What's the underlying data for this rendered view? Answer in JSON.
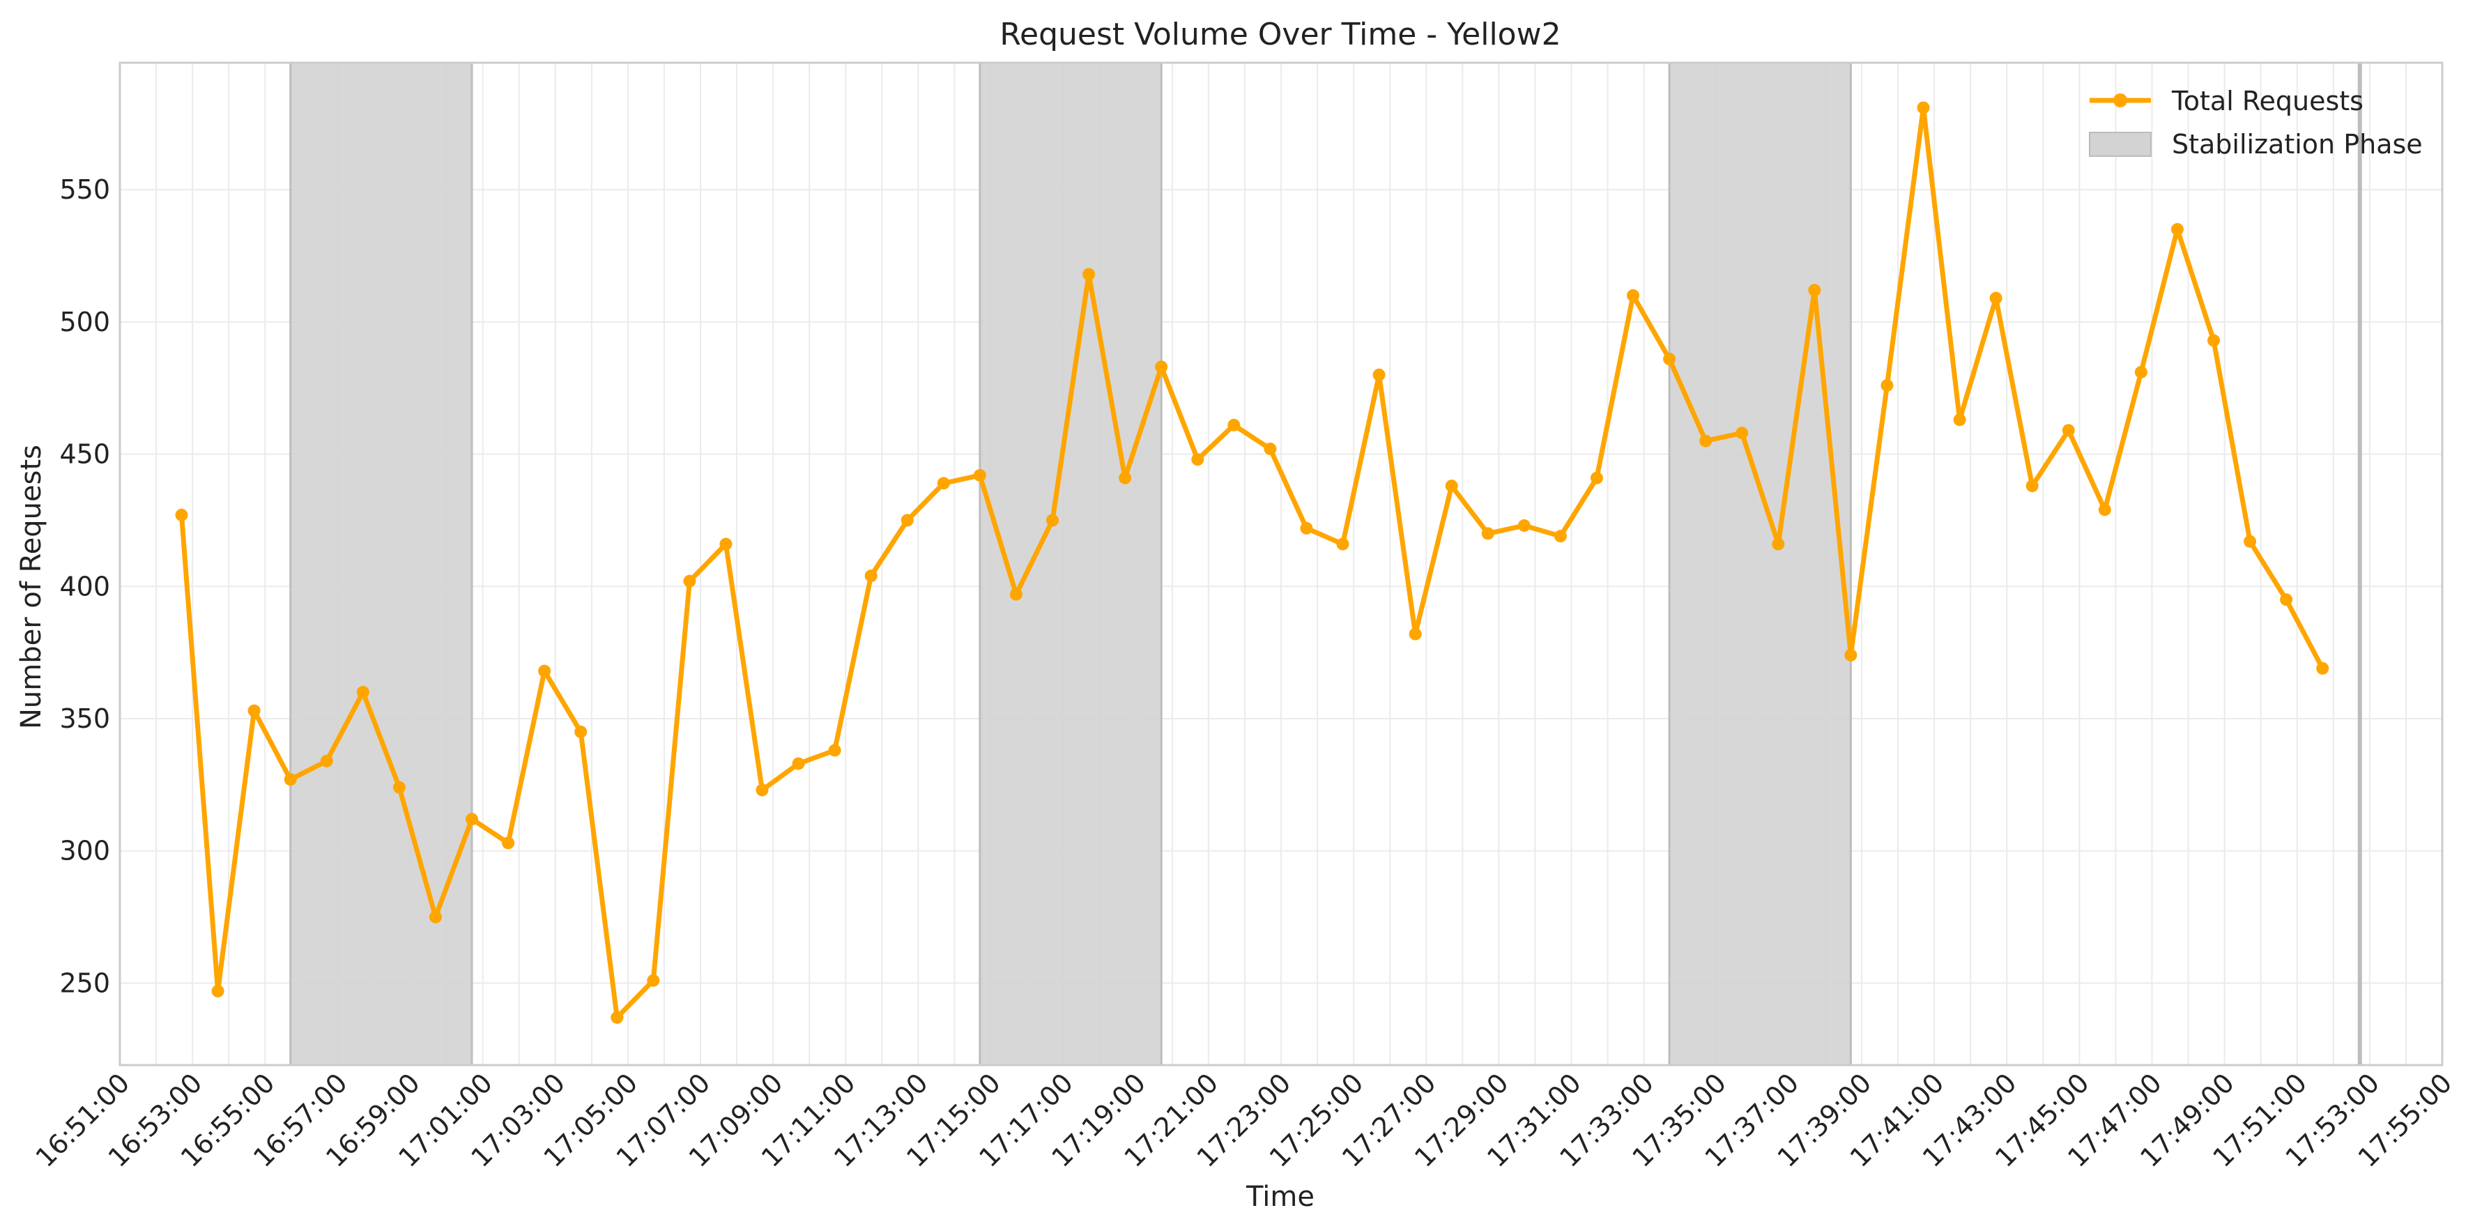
{
  "chart_data": {
    "type": "line",
    "title": "Request Volume Over Time - Yellow2",
    "xlabel": "Time",
    "ylabel": "Number of Requests",
    "x_range": [
      "16:51:00",
      "17:55:00"
    ],
    "ylim": [
      219,
      598
    ],
    "grid": true,
    "legend_position": "top-right",
    "x_ticks": [
      "16:51:00",
      "16:53:00",
      "16:55:00",
      "16:57:00",
      "16:59:00",
      "17:01:00",
      "17:03:00",
      "17:05:00",
      "17:07:00",
      "17:09:00",
      "17:11:00",
      "17:13:00",
      "17:15:00",
      "17:17:00",
      "17:19:00",
      "17:21:00",
      "17:23:00",
      "17:25:00",
      "17:27:00",
      "17:29:00",
      "17:31:00",
      "17:33:00",
      "17:35:00",
      "17:37:00",
      "17:39:00",
      "17:41:00",
      "17:43:00",
      "17:45:00",
      "17:47:00",
      "17:49:00",
      "17:51:00",
      "17:53:00",
      "17:55:00"
    ],
    "y_ticks": [
      250,
      300,
      350,
      400,
      450,
      500,
      550
    ],
    "series": [
      {
        "name": "Total Requests",
        "color": "#FFA500",
        "x": [
          "16:52:42",
          "16:53:42",
          "16:54:42",
          "16:55:42",
          "16:56:42",
          "16:57:42",
          "16:58:42",
          "16:59:42",
          "17:00:42",
          "17:01:42",
          "17:02:42",
          "17:03:42",
          "17:04:42",
          "17:05:42",
          "17:06:42",
          "17:07:42",
          "17:08:42",
          "17:09:42",
          "17:10:42",
          "17:11:42",
          "17:12:42",
          "17:13:42",
          "17:14:42",
          "17:15:42",
          "17:16:42",
          "17:17:42",
          "17:18:42",
          "17:19:42",
          "17:20:42",
          "17:21:42",
          "17:22:42",
          "17:23:42",
          "17:24:42",
          "17:25:42",
          "17:26:42",
          "17:27:42",
          "17:28:42",
          "17:29:42",
          "17:30:42",
          "17:31:42",
          "17:32:42",
          "17:33:42",
          "17:34:42",
          "17:35:42",
          "17:36:42",
          "17:37:42",
          "17:38:42",
          "17:39:42",
          "17:40:42",
          "17:41:42",
          "17:42:42",
          "17:43:42",
          "17:44:42",
          "17:45:42",
          "17:46:42",
          "17:47:42",
          "17:48:42",
          "17:49:42",
          "17:50:42",
          "17:51:42"
        ],
        "values": [
          427,
          247,
          353,
          327,
          334,
          360,
          324,
          275,
          312,
          303,
          368,
          345,
          237,
          251,
          402,
          416,
          323,
          333,
          338,
          404,
          425,
          439,
          442,
          397,
          425,
          518,
          441,
          483,
          448,
          461,
          452,
          422,
          416,
          480,
          382,
          438,
          420,
          423,
          419,
          441,
          510,
          486,
          455,
          458,
          416,
          512,
          374,
          476,
          581,
          463,
          509,
          438,
          459,
          429,
          481,
          535,
          493,
          417,
          395,
          369
        ]
      }
    ],
    "shaded_regions": {
      "name": "Stabilization Phase",
      "color": "#d3d3d3",
      "ranges": [
        [
          "16:55:42",
          "17:00:42"
        ],
        [
          "17:14:42",
          "17:19:42"
        ],
        [
          "17:33:42",
          "17:38:42"
        ],
        [
          "17:52:42",
          "17:52:42"
        ]
      ]
    }
  }
}
